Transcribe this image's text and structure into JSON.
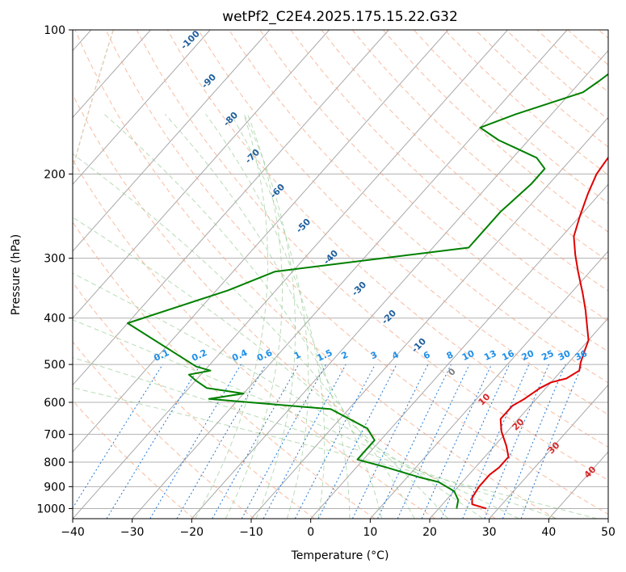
{
  "chart_data": {
    "type": "line",
    "chart_kind": "skew-T log-P diagram",
    "title": "wetPf2_C2E4.2025.175.15.22.G32",
    "xlabel": "Temperature (°C)",
    "ylabel": "Pressure (hPa)",
    "xlim": [
      -40,
      50
    ],
    "ylim": [
      1050,
      100
    ],
    "y_scale": "log",
    "x_ticks": [
      -40,
      -30,
      -20,
      -10,
      0,
      10,
      20,
      30,
      40,
      50
    ],
    "y_ticks": [
      1000,
      900,
      800,
      700,
      600,
      500,
      400,
      300,
      200,
      100
    ],
    "grid": true,
    "series": [
      {
        "role": "temperature",
        "color": "#e00000",
        "points": [
          [
            28,
            1000
          ],
          [
            25,
            980
          ],
          [
            24,
            950
          ],
          [
            23.5,
            900
          ],
          [
            23.5,
            850
          ],
          [
            24,
            820
          ],
          [
            24,
            780
          ],
          [
            22,
            740
          ],
          [
            19,
            690
          ],
          [
            17,
            650
          ],
          [
            17,
            610
          ],
          [
            18,
            590
          ],
          [
            19,
            560
          ],
          [
            20,
            545
          ],
          [
            22,
            535
          ],
          [
            23,
            515
          ],
          [
            22,
            495
          ],
          [
            21,
            470
          ],
          [
            20,
            445
          ],
          [
            18,
            420
          ],
          [
            15,
            385
          ],
          [
            12,
            355
          ],
          [
            8,
            320
          ],
          [
            5,
            295
          ],
          [
            2,
            270
          ],
          [
            0,
            245
          ],
          [
            -2,
            220
          ],
          [
            -3.5,
            200
          ],
          [
            -4,
            185
          ],
          [
            -3,
            170
          ],
          [
            -2,
            160
          ],
          [
            -3,
            150
          ],
          [
            -5,
            140
          ],
          [
            -5.5,
            130
          ],
          [
            -5,
            122
          ],
          [
            -4,
            115
          ],
          [
            -3.5,
            108
          ],
          [
            -2,
            100
          ]
        ]
      },
      {
        "role": "dewpoint",
        "color": "#008000",
        "points": [
          [
            23,
            1000
          ],
          [
            22,
            960
          ],
          [
            20,
            920
          ],
          [
            16,
            880
          ],
          [
            12,
            860
          ],
          [
            5,
            820
          ],
          [
            -1,
            790
          ],
          [
            -1,
            760
          ],
          [
            -1,
            720
          ],
          [
            -4,
            680
          ],
          [
            -13,
            620
          ],
          [
            -35,
            590
          ],
          [
            -30,
            575
          ],
          [
            -37,
            560
          ],
          [
            -40,
            540
          ],
          [
            -42,
            525
          ],
          [
            -39,
            515
          ],
          [
            -42,
            505
          ],
          [
            -60,
            410
          ],
          [
            -48,
            350
          ],
          [
            -43,
            320
          ],
          [
            -27,
            300
          ],
          [
            -14,
            285
          ],
          [
            -14,
            265
          ],
          [
            -14,
            240
          ],
          [
            -13,
            210
          ],
          [
            -13,
            195
          ],
          [
            -16,
            185
          ],
          [
            -25,
            170
          ],
          [
            -30,
            160
          ],
          [
            -26,
            150
          ],
          [
            -18,
            135
          ],
          [
            -17,
            128
          ],
          [
            -16,
            120
          ],
          [
            -14,
            112
          ],
          [
            -12,
            100
          ]
        ]
      }
    ],
    "dry_adiabat_labels": [
      "-100",
      "-90",
      "-80",
      "-70",
      "-60",
      "-50",
      "-40",
      "-30",
      "-20",
      "-10",
      "0",
      "10",
      "20",
      "30",
      "40"
    ],
    "mixing_ratio_labels": [
      "0.1",
      "0.2",
      "0.4",
      "0.6",
      "1",
      "1.5",
      "2",
      "3",
      "4",
      "6",
      "8",
      "10",
      "13",
      "16",
      "20",
      "25",
      "30",
      "36"
    ]
  }
}
